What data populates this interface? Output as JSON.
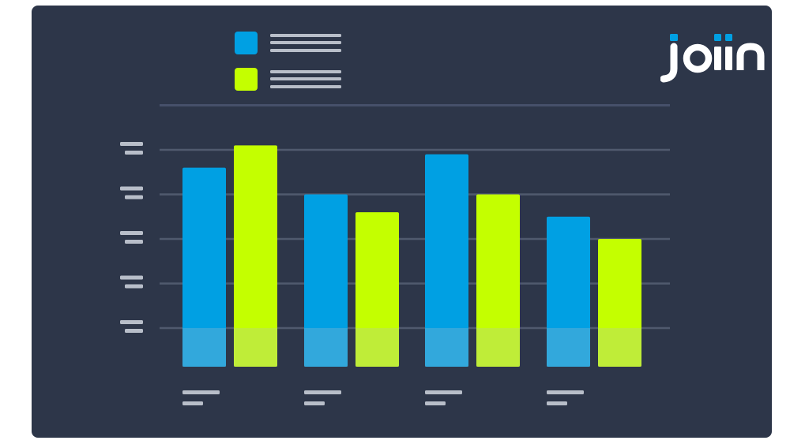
{
  "brand": {
    "logo_text": "joiin",
    "logo_icon": "joiin-logo",
    "background_color": "#2d3649",
    "text_color": "#ffffff",
    "accent_color": "#00a0e3"
  },
  "colors": {
    "series_1": "#00a0e3",
    "series_2": "#c4ff00",
    "gridline": "#505a6e",
    "placeholder": "#b8bec9",
    "base_overlay": "rgba(180,190,200,0.28)"
  },
  "chart_data": {
    "type": "bar",
    "title": "",
    "xlabel": "",
    "ylabel": "",
    "categories": [
      "",
      "",
      "",
      ""
    ],
    "ylim": [
      0,
      5
    ],
    "grid": true,
    "legend": "top-left",
    "tick_labels_placeholder": true,
    "series": [
      {
        "values": [
          3.6,
          3.0,
          3.9,
          2.5
        ]
      },
      {
        "values": [
          4.1,
          2.6,
          3.0,
          2.0
        ]
      }
    ]
  }
}
